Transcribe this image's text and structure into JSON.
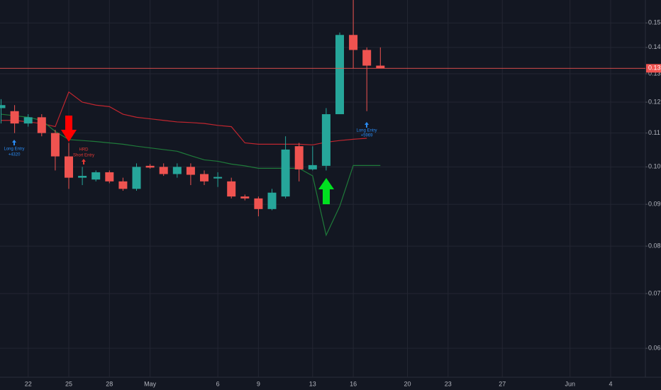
{
  "chart_data": {
    "type": "candlestick",
    "log_scale": true,
    "grid": true,
    "up_color": "#26a69a",
    "down_color": "#ef5350",
    "categories": [
      null,
      null,
      "22",
      null,
      null,
      "25",
      null,
      null,
      "28",
      null,
      null,
      "May",
      null,
      null,
      null,
      null,
      "6",
      null,
      null,
      "9",
      null,
      null,
      null,
      "13",
      null,
      null,
      "16",
      null,
      null,
      null,
      "20",
      null,
      null,
      "23",
      null,
      null,
      null,
      "27",
      null,
      null,
      null,
      null,
      "Jun",
      null,
      null,
      "4",
      null,
      null
    ],
    "open": [
      0.118,
      0.117,
      0.113,
      0.115,
      0.11,
      0.103,
      0.097,
      0.0965,
      0.0985,
      0.096,
      0.094,
      0.1003,
      0.1,
      0.098,
      0.1,
      0.098,
      0.0968,
      0.096,
      0.092,
      0.0915,
      0.0888,
      0.092,
      0.106,
      0.0993,
      0.1003,
      0.116,
      0.145,
      0.139,
      0.133,
      null,
      null,
      null,
      null,
      null,
      null,
      null,
      null,
      null,
      null,
      null,
      null,
      null,
      null,
      null,
      null,
      null,
      null,
      null
    ],
    "high": [
      0.121,
      0.119,
      0.116,
      0.116,
      0.111,
      0.107,
      0.1,
      0.099,
      0.099,
      0.097,
      0.101,
      0.1008,
      0.101,
      0.101,
      0.101,
      0.099,
      0.0985,
      0.097,
      0.0925,
      0.092,
      0.094,
      0.109,
      0.107,
      0.106,
      0.118,
      0.146,
      0.16,
      0.14,
      0.14,
      null,
      null,
      null,
      null,
      null,
      null,
      null,
      null,
      null,
      null,
      null,
      null,
      null,
      null,
      null,
      null,
      null,
      null,
      null
    ],
    "low": [
      0.113,
      0.11,
      0.112,
      0.109,
      0.099,
      0.094,
      0.095,
      0.096,
      0.0955,
      0.0935,
      0.0935,
      0.0995,
      0.0975,
      0.097,
      0.095,
      0.095,
      0.0945,
      0.0915,
      0.091,
      0.087,
      0.0885,
      0.0915,
      0.096,
      0.099,
      0.099,
      0.116,
      0.132,
      0.117,
      0.132,
      null,
      null,
      null,
      null,
      null,
      null,
      null,
      null,
      null,
      null,
      null,
      null,
      null,
      null,
      null,
      null,
      null,
      null,
      null
    ],
    "close": [
      0.119,
      0.113,
      0.115,
      0.11,
      0.103,
      0.097,
      0.0975,
      0.0985,
      0.096,
      0.094,
      0.1,
      0.0998,
      0.098,
      0.1,
      0.0978,
      0.096,
      0.0972,
      0.092,
      0.0915,
      0.0888,
      0.093,
      0.105,
      0.0993,
      0.1005,
      0.116,
      0.145,
      0.139,
      0.133,
      0.132,
      null,
      null,
      null,
      null,
      null,
      null,
      null,
      null,
      null,
      null,
      null,
      null,
      null,
      null,
      null,
      null,
      null,
      null,
      null
    ],
    "lines": [
      {
        "color": "#c0262f",
        "values": [
          0.114,
          0.114,
          0.1135,
          0.113,
          0.112,
          0.1235,
          0.12,
          0.119,
          0.1185,
          0.116,
          0.115,
          0.1145,
          0.114,
          0.1135,
          0.1133,
          0.113,
          0.1124,
          0.112,
          0.107,
          0.1066,
          0.1066,
          0.1066,
          0.1066,
          0.1064,
          0.1072,
          0.1077,
          0.1081,
          0.1084,
          null,
          null,
          null,
          null,
          null,
          null,
          null,
          null,
          null,
          null,
          null,
          null,
          null,
          null,
          null,
          null,
          null,
          null,
          null,
          null
        ]
      },
      {
        "color": "#1f7a3a",
        "values": [
          0.116,
          0.1155,
          0.115,
          0.114,
          0.1105,
          0.108,
          0.1077,
          0.1074,
          0.107,
          0.1066,
          0.106,
          0.1055,
          0.105,
          0.1045,
          0.1032,
          0.102,
          0.1016,
          0.1008,
          0.1003,
          0.0996,
          0.0996,
          0.0996,
          0.0996,
          0.0975,
          0.0825,
          0.0895,
          0.1004,
          0.1004,
          0.1004,
          null,
          null,
          null,
          null,
          null,
          null,
          null,
          null,
          null,
          null,
          null,
          null,
          null,
          null,
          null,
          null,
          null,
          null,
          null
        ]
      }
    ],
    "last_price": {
      "value": 0.132,
      "label": "0.13"
    },
    "ylim": [
      0.0553,
      0.16
    ],
    "yticks": [
      0.06,
      0.07,
      0.08,
      0.09,
      {
        "value": 0.1,
        "label": "0.10"
      },
      0.11,
      0.12,
      0.13,
      0.14,
      0.15
    ],
    "annotations": [
      [
        "Long Entry",
        "+4320"
      ],
      [
        "HRD",
        "Short Entry"
      ],
      [
        "Long Entry",
        "+5969"
      ]
    ]
  }
}
